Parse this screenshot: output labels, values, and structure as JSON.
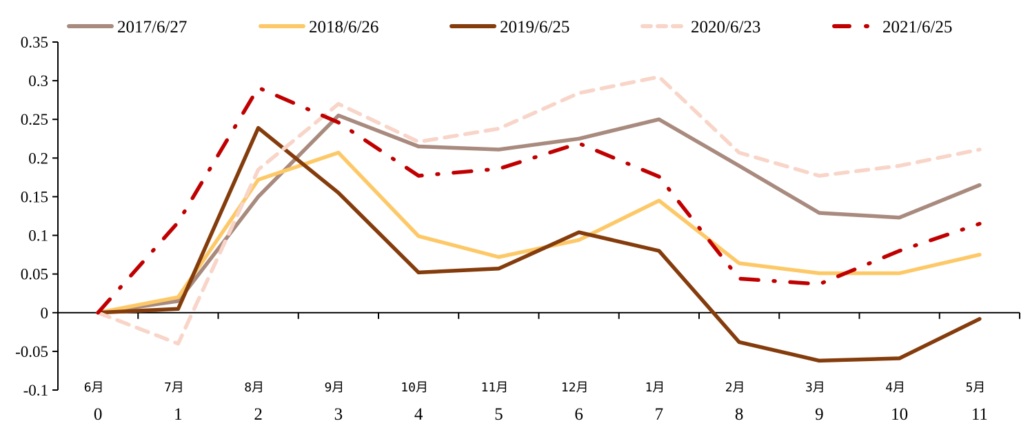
{
  "chart_data": {
    "type": "line",
    "title": "",
    "xlabel": "",
    "ylabel": "",
    "ylim": [
      -0.1,
      0.35
    ],
    "yticks": [
      "0.35",
      "0.3",
      "0.25",
      "0.2",
      "0.15",
      "0.1",
      "0.05",
      "0",
      "-0.05",
      "-0.1"
    ],
    "ytick_values": [
      0.35,
      0.3,
      0.25,
      0.2,
      0.15,
      0.1,
      0.05,
      0,
      -0.05,
      -0.1
    ],
    "x": [
      0,
      1,
      2,
      3,
      4,
      5,
      6,
      7,
      8,
      9,
      10,
      11
    ],
    "x_tick_labels": [
      "0",
      "1",
      "2",
      "3",
      "4",
      "5",
      "6",
      "7",
      "8",
      "9",
      "10",
      "11"
    ],
    "month_labels": [
      "6月",
      "7月",
      "8月",
      "9月",
      "10月",
      "11月",
      "12月",
      "1月",
      "2月",
      "3月",
      "4月",
      "5月"
    ],
    "grid": false,
    "legend_position": "top",
    "series": [
      {
        "name": "2017/6/27",
        "color": "#A88A7E",
        "style": "solid",
        "values": [
          0,
          0.015,
          0.15,
          0.255,
          0.215,
          0.211,
          0.225,
          0.25,
          0.19,
          0.129,
          0.123,
          0.165
        ]
      },
      {
        "name": "2018/6/26",
        "color": "#FDC968",
        "style": "solid",
        "values": [
          0,
          0.02,
          0.172,
          0.207,
          0.099,
          0.072,
          0.094,
          0.145,
          0.064,
          0.051,
          0.051,
          0.075
        ]
      },
      {
        "name": "2019/6/25",
        "color": "#843C0C",
        "style": "solid",
        "values": [
          0,
          0.005,
          0.239,
          0.155,
          0.052,
          0.057,
          0.104,
          0.08,
          -0.038,
          -0.062,
          -0.059,
          -0.008
        ]
      },
      {
        "name": "2020/6/23",
        "color": "#F8D5C8",
        "style": "dash",
        "values": [
          0,
          -0.04,
          0.185,
          0.27,
          0.221,
          0.238,
          0.284,
          0.305,
          0.207,
          0.177,
          0.19,
          0.211
        ]
      },
      {
        "name": "2021/6/25",
        "color": "#C00000",
        "style": "dashdot",
        "values": [
          0,
          0.117,
          0.291,
          0.246,
          0.177,
          0.186,
          0.219,
          0.176,
          0.044,
          0.037,
          0.08,
          0.115
        ]
      }
    ]
  }
}
